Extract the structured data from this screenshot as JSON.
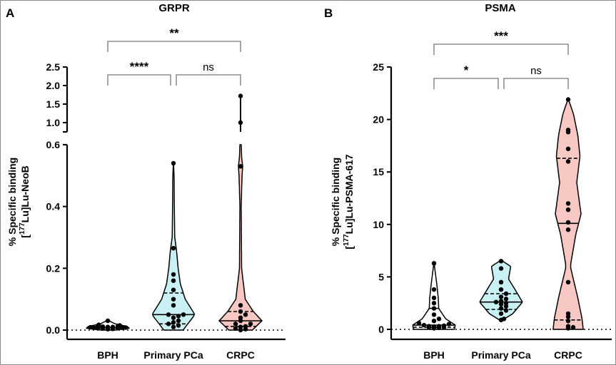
{
  "panels": {
    "a": {
      "letter": "A",
      "title": "GRPR",
      "ylabel_line1": "% Specific binding",
      "ylabel_line2_pre": "[",
      "ylabel_line2_sup": "177",
      "ylabel_line2_post": "Lu]Lu-NeoB"
    },
    "b": {
      "letter": "B",
      "title": "PSMA",
      "ylabel_line1": "% Specific binding",
      "ylabel_line2_pre": "[",
      "ylabel_line2_sup": "177",
      "ylabel_line2_post": "Lu]Lu-PSMA-617"
    }
  },
  "colors": {
    "bph": "#ffffff",
    "primary_pca": "#c9f1f4",
    "crpc": "#f7c7c3",
    "outline": "#000000"
  },
  "chart_data": [
    {
      "type": "violin",
      "panel": "A",
      "title": "GRPR",
      "ylabel": "% Specific binding [177Lu]Lu-NeoB",
      "categories": [
        "BPH",
        "Primary PCa",
        "CRPC"
      ],
      "y_axis": {
        "broken": true,
        "lower_range": [
          0,
          0.6
        ],
        "lower_ticks": [
          "0.0",
          "0.2",
          "0.4",
          "0.6"
        ],
        "upper_range": [
          0.75,
          2.5
        ],
        "upper_ticks": [
          "1.0",
          "1.5",
          "2.0",
          "2.5"
        ]
      },
      "baseline_dotted": 0,
      "series": [
        {
          "category": "BPH",
          "color": "#ffffff",
          "points": [
            0.003,
            0.004,
            0.005,
            0.006,
            0.006,
            0.007,
            0.008,
            0.008,
            0.009,
            0.01,
            0.01,
            0.011,
            0.012,
            0.013,
            0.015,
            0.017,
            0.03
          ],
          "median": 0.008,
          "q1": 0.005,
          "q3": 0.012,
          "violin_max": 0.032,
          "profile": [
            [
              0.0,
              0.35
            ],
            [
              0.006,
              1.0
            ],
            [
              0.012,
              0.9
            ],
            [
              0.02,
              0.35
            ],
            [
              0.032,
              0.0
            ]
          ]
        },
        {
          "category": "Primary PCa",
          "color": "#c9f1f4",
          "points": [
            0.01,
            0.015,
            0.02,
            0.025,
            0.03,
            0.04,
            0.045,
            0.05,
            0.05,
            0.08,
            0.1,
            0.13,
            0.16,
            0.18,
            0.265,
            0.54
          ],
          "median": 0.05,
          "q1": 0.02,
          "q3": 0.12,
          "violin_max": 0.545,
          "profile": [
            [
              0.0,
              0.45
            ],
            [
              0.05,
              1.0
            ],
            [
              0.1,
              0.55
            ],
            [
              0.15,
              0.32
            ],
            [
              0.2,
              0.22
            ],
            [
              0.26,
              0.14
            ],
            [
              0.3,
              0.06
            ],
            [
              0.4,
              0.04
            ],
            [
              0.5,
              0.03
            ],
            [
              0.545,
              0.0
            ]
          ]
        },
        {
          "category": "CRPC",
          "color": "#f7c7c3",
          "points": [
            0.0,
            0.003,
            0.005,
            0.01,
            0.012,
            0.02,
            0.02,
            0.03,
            0.04,
            0.05,
            0.06,
            0.08,
            0.53,
            1.0,
            1.72
          ],
          "median": 0.03,
          "q1": 0.012,
          "q3": 0.06,
          "violin_max": 1.72,
          "profile": [
            [
              0.0,
              0.55
            ],
            [
              0.03,
              1.0
            ],
            [
              0.06,
              0.6
            ],
            [
              0.1,
              0.22
            ],
            [
              0.2,
              0.05
            ],
            [
              0.4,
              0.03
            ],
            [
              0.5,
              0.07
            ],
            [
              0.53,
              0.1
            ],
            [
              0.56,
              0.05
            ],
            [
              0.6,
              0.03
            ]
          ],
          "upper_profile": [
            [
              0.75,
              0.03
            ],
            [
              1.0,
              0.05
            ],
            [
              1.72,
              0.03
            ]
          ]
        }
      ],
      "comparisons": [
        {
          "from": "BPH",
          "to": "Primary PCa",
          "label": "****"
        },
        {
          "from": "Primary PCa",
          "to": "CRPC",
          "label": "ns"
        },
        {
          "from": "BPH",
          "to": "CRPC",
          "label": "**"
        }
      ]
    },
    {
      "type": "violin",
      "panel": "B",
      "title": "PSMA",
      "ylabel": "% Specific binding [177Lu]Lu-PSMA-617",
      "categories": [
        "BPH",
        "Primary PCa",
        "CRPC"
      ],
      "y_axis": {
        "range": [
          0,
          25
        ],
        "ticks": [
          "0",
          "5",
          "10",
          "15",
          "20",
          "25"
        ]
      },
      "baseline_dotted": 0,
      "series": [
        {
          "category": "BPH",
          "color": "#ffffff",
          "points": [
            0.1,
            0.15,
            0.2,
            0.2,
            0.25,
            0.3,
            0.3,
            0.35,
            0.4,
            0.5,
            0.6,
            0.8,
            1.0,
            1.4,
            2.0,
            2.5,
            3.0,
            3.8,
            6.3
          ],
          "median": 0.4,
          "q1": 0.2,
          "q3": 2.0,
          "violin_max": 6.4,
          "profile": [
            [
              0.0,
              0.95
            ],
            [
              0.4,
              1.0
            ],
            [
              1.0,
              0.55
            ],
            [
              2.0,
              0.22
            ],
            [
              3.0,
              0.2
            ],
            [
              4.5,
              0.12
            ],
            [
              6.4,
              0.0
            ]
          ]
        },
        {
          "category": "Primary PCa",
          "color": "#c9f1f4",
          "points": [
            0.9,
            1.0,
            1.5,
            1.8,
            2.0,
            2.2,
            2.4,
            2.5,
            2.6,
            2.7,
            2.9,
            3.1,
            3.4,
            3.8,
            4.5,
            5.8,
            6.5
          ],
          "median": 2.6,
          "q1": 1.9,
          "q3": 3.4,
          "violin_max": 6.6,
          "profile": [
            [
              0.8,
              0.0
            ],
            [
              1.5,
              0.55
            ],
            [
              2.6,
              1.0
            ],
            [
              3.8,
              0.65
            ],
            [
              4.8,
              0.35
            ],
            [
              6.0,
              0.45
            ],
            [
              6.6,
              0.0
            ]
          ]
        },
        {
          "category": "CRPC",
          "color": "#f7c7c3",
          "points": [
            0.1,
            0.2,
            0.3,
            0.8,
            1.2,
            1.5,
            4.5,
            9.5,
            10.2,
            11.4,
            12.0,
            16.0,
            17.2,
            18.8,
            19.0,
            21.9
          ],
          "median": 10.1,
          "q1": 0.9,
          "q3": 16.3,
          "violin_max": 22.0,
          "profile": [
            [
              0.0,
              0.7
            ],
            [
              1.0,
              0.65
            ],
            [
              3.0,
              0.45
            ],
            [
              6.0,
              0.1
            ],
            [
              9.0,
              0.35
            ],
            [
              11.0,
              0.6
            ],
            [
              14.0,
              0.4
            ],
            [
              16.5,
              0.55
            ],
            [
              18.5,
              0.45
            ],
            [
              20.5,
              0.25
            ],
            [
              22.0,
              0.0
            ]
          ]
        }
      ],
      "comparisons": [
        {
          "from": "BPH",
          "to": "Primary PCa",
          "label": "*"
        },
        {
          "from": "Primary PCa",
          "to": "CRPC",
          "label": "ns"
        },
        {
          "from": "BPH",
          "to": "CRPC",
          "label": "***"
        }
      ]
    }
  ]
}
